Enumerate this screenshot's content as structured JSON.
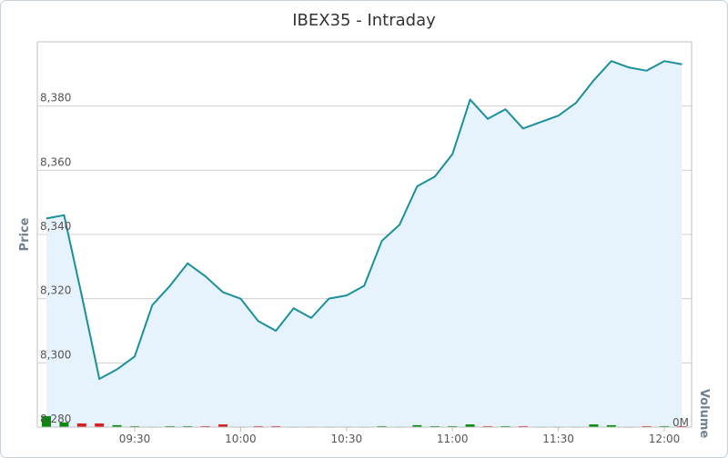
{
  "chart_data": {
    "type": "line",
    "title": "IBEX35 - Intraday",
    "y_label": "Price",
    "y2_label": "Volume",
    "categories": [
      null,
      null,
      null,
      null,
      null,
      "09:30",
      null,
      null,
      null,
      null,
      null,
      "10:00",
      null,
      null,
      null,
      null,
      null,
      "10:30",
      null,
      null,
      null,
      null,
      null,
      "11:00",
      null,
      null,
      null,
      null,
      null,
      "11:30",
      null,
      null,
      null,
      null,
      null,
      "12:00",
      null
    ],
    "series": [
      {
        "name": "Price",
        "color": "#1b8f9b",
        "fill": "#e6f3fc",
        "values": [
          8345,
          8346,
          8321,
          8295,
          8298,
          8302,
          8318,
          8324,
          8331,
          8327,
          8322,
          8320,
          8313,
          8310,
          8317,
          8314,
          8320,
          8321,
          8324,
          8338,
          8343,
          8355,
          8358,
          8365,
          8382,
          8376,
          8379,
          8373,
          8375,
          8377,
          8381,
          8388,
          8394,
          8392,
          8391,
          8394,
          8393
        ]
      },
      {
        "name": "Volume",
        "axis": "y2",
        "type": "bar",
        "up_color": "#0a8a0a",
        "down_color": "#d61f1f",
        "values": [
          0.57,
          0.24,
          0.19,
          0.19,
          0.1,
          0.05,
          0.02,
          0.05,
          0.05,
          0.05,
          0.14,
          0.02,
          0.05,
          0.05,
          0.02,
          0.02,
          0.02,
          0.02,
          0.02,
          0.05,
          0.02,
          0.1,
          0.05,
          0.05,
          0.14,
          0.05,
          0.05,
          0.05,
          0.02,
          0.02,
          0.02,
          0.14,
          0.1,
          0.02,
          0.05,
          0.05,
          0.05
        ]
      }
    ],
    "ylim": [
      8280,
      8400
    ],
    "yticks": [
      {
        "value": 8280,
        "label": "8,280"
      },
      {
        "value": 8300,
        "label": "8,300"
      },
      {
        "value": 8320,
        "label": "8,320"
      },
      {
        "value": 8340,
        "label": "8,340"
      },
      {
        "value": 8360,
        "label": "8,360"
      },
      {
        "value": 8380,
        "label": "8,380"
      }
    ],
    "y2lim": [
      0,
      20
    ],
    "y2ticks": [
      {
        "value": 0,
        "label": "0M"
      }
    ],
    "grid": true
  }
}
